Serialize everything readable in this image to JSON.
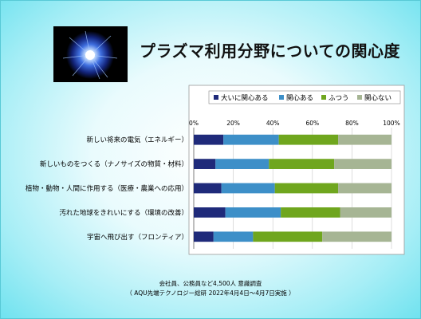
{
  "slide": {
    "title": "プラズマ利用分野についての関心度",
    "footnote_line1": "会社員、公務員など4,500人 意識調査",
    "footnote_line2": "（ AQU先端テクノロジー総研 2022年4月4日～4月7日実施 ）"
  },
  "colors": {
    "大いに関心ある": "#1f2a7a",
    "関心ある": "#3d8fc8",
    "ふつう": "#6fa61e",
    "関心ない": "#a6b594"
  },
  "chart_data": {
    "type": "bar",
    "orientation": "horizontal",
    "stacked": "percent",
    "categories": [
      "新しい将来の電気（エネルギー）",
      "新しいものをつくる（ナノサイズの物質・材料）",
      "植物・動物・人間に作用する（医療・農業への応用）",
      "汚れた地球をきれいにする（環境の改善）",
      "宇宙へ飛び出す（フロンティア）"
    ],
    "series": [
      {
        "name": "大いに関心ある",
        "values": [
          15,
          11,
          14,
          16,
          10
        ]
      },
      {
        "name": "関心ある",
        "values": [
          28,
          27,
          27,
          28,
          20
        ]
      },
      {
        "name": "ふつう",
        "values": [
          30,
          33,
          32,
          30,
          35
        ]
      },
      {
        "name": "関心ない",
        "values": [
          27,
          29,
          27,
          26,
          35
        ]
      }
    ],
    "xlim": [
      0,
      100
    ],
    "x_ticks": [
      "0%",
      "20%",
      "40%",
      "60%",
      "80%",
      "100%"
    ],
    "legend_position": "top-right",
    "grid": true
  }
}
